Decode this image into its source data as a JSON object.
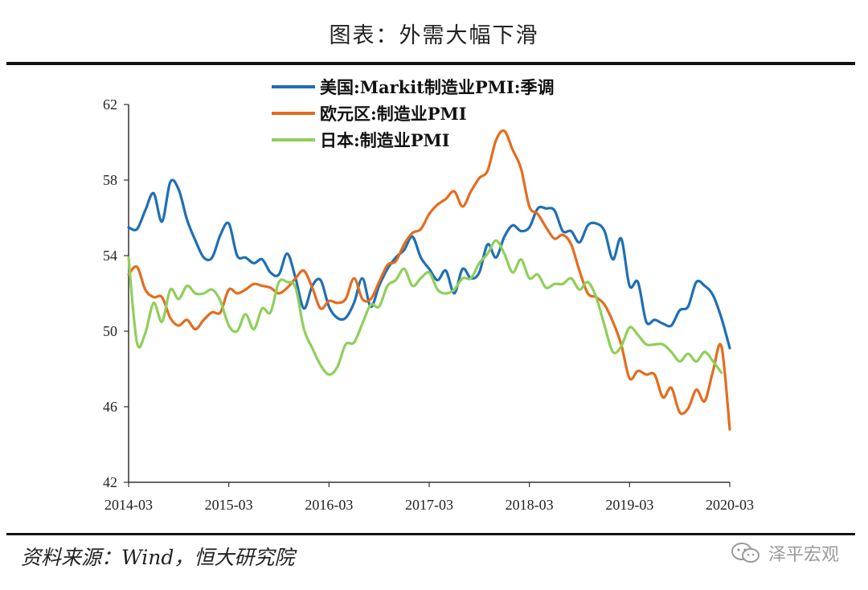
{
  "title": "图表：外需大幅下滑",
  "source": "资料来源：Wind，恒大研究院",
  "brand": "泽平宏观",
  "brand_icon": "wechat-icon",
  "chart_data": {
    "type": "line",
    "x_type": "monthly",
    "x_ticks": [
      "2014-03",
      "2015-03",
      "2016-03",
      "2017-03",
      "2018-03",
      "2019-03",
      "2020-03"
    ],
    "ylim": [
      42,
      62
    ],
    "y_ticks": [
      42,
      46,
      50,
      54,
      58,
      62
    ],
    "legend_position": "top-center",
    "grid": false,
    "series": [
      {
        "name": "美国:Markit制造业PMI:季调",
        "color": "#1f6fb5",
        "start": "2014-03",
        "values": [
          55.5,
          55.4,
          56.4,
          57.3,
          55.8,
          57.9,
          57.5,
          55.9,
          54.8,
          53.9,
          53.9,
          55.1,
          55.7,
          54.0,
          53.9,
          53.6,
          53.8,
          53.1,
          53.0,
          54.1,
          52.8,
          51.2,
          52.4,
          52.7,
          51.3,
          50.7,
          50.7,
          51.5,
          52.8,
          51.3,
          52.4,
          53.3,
          53.9,
          54.3,
          55.0,
          53.9,
          53.3,
          52.7,
          53.2,
          52.0,
          53.3,
          52.8,
          53.1,
          54.6,
          53.9,
          55.0,
          55.6,
          55.3,
          55.5,
          56.5,
          56.5,
          56.4,
          55.3,
          55.3,
          54.7,
          55.6,
          55.7,
          55.3,
          53.8,
          54.9,
          52.4,
          52.6,
          50.5,
          50.6,
          50.4,
          50.3,
          51.1,
          51.3,
          52.6,
          52.4,
          51.9,
          50.7,
          49.1
        ]
      },
      {
        "name": "欧元区:制造业PMI",
        "color": "#e46c1e",
        "start": "2014-03",
        "values": [
          53.0,
          53.4,
          52.2,
          51.8,
          51.8,
          50.7,
          50.3,
          50.6,
          50.1,
          50.6,
          51.0,
          51.0,
          52.2,
          52.0,
          52.2,
          52.5,
          52.4,
          52.3,
          52.0,
          52.3,
          52.8,
          53.2,
          52.3,
          51.2,
          51.6,
          51.5,
          51.7,
          52.8,
          51.7,
          51.7,
          52.6,
          53.5,
          53.7,
          54.6,
          55.2,
          55.4,
          56.2,
          56.7,
          57.0,
          57.4,
          56.6,
          57.4,
          58.1,
          58.5,
          60.1,
          60.6,
          59.6,
          58.6,
          56.6,
          56.2,
          55.5,
          54.9,
          55.1,
          54.6,
          53.2,
          52.0,
          51.8,
          51.4,
          50.5,
          49.3,
          47.5,
          47.9,
          47.7,
          47.7,
          46.5,
          47.0,
          45.7,
          45.9,
          46.9,
          46.3,
          47.9,
          49.2,
          44.8
        ]
      },
      {
        "name": "日本:制造业PMI",
        "color": "#8fcf5a",
        "start": "2014-03",
        "values": [
          53.9,
          49.4,
          49.9,
          51.5,
          50.5,
          52.2,
          51.7,
          52.4,
          52.0,
          52.0,
          52.2,
          51.6,
          50.3,
          50.0,
          50.9,
          50.1,
          51.2,
          51.0,
          52.6,
          52.6,
          52.3,
          50.1,
          49.1,
          48.2,
          47.7,
          48.1,
          49.3,
          49.4,
          50.4,
          51.4,
          51.3,
          52.4,
          52.7,
          53.3,
          52.4,
          52.8,
          53.1,
          52.2,
          52.0,
          52.2,
          52.8,
          52.8,
          53.6,
          54.1,
          54.8,
          54.1,
          53.1,
          53.8,
          52.8,
          53.0,
          52.3,
          52.5,
          52.5,
          52.8,
          52.2,
          52.6,
          51.8,
          50.3,
          48.9,
          49.2,
          50.2,
          49.8,
          49.3,
          49.3,
          49.3,
          48.9,
          48.4,
          48.8,
          48.4,
          48.9,
          48.4,
          47.8
        ]
      }
    ]
  }
}
